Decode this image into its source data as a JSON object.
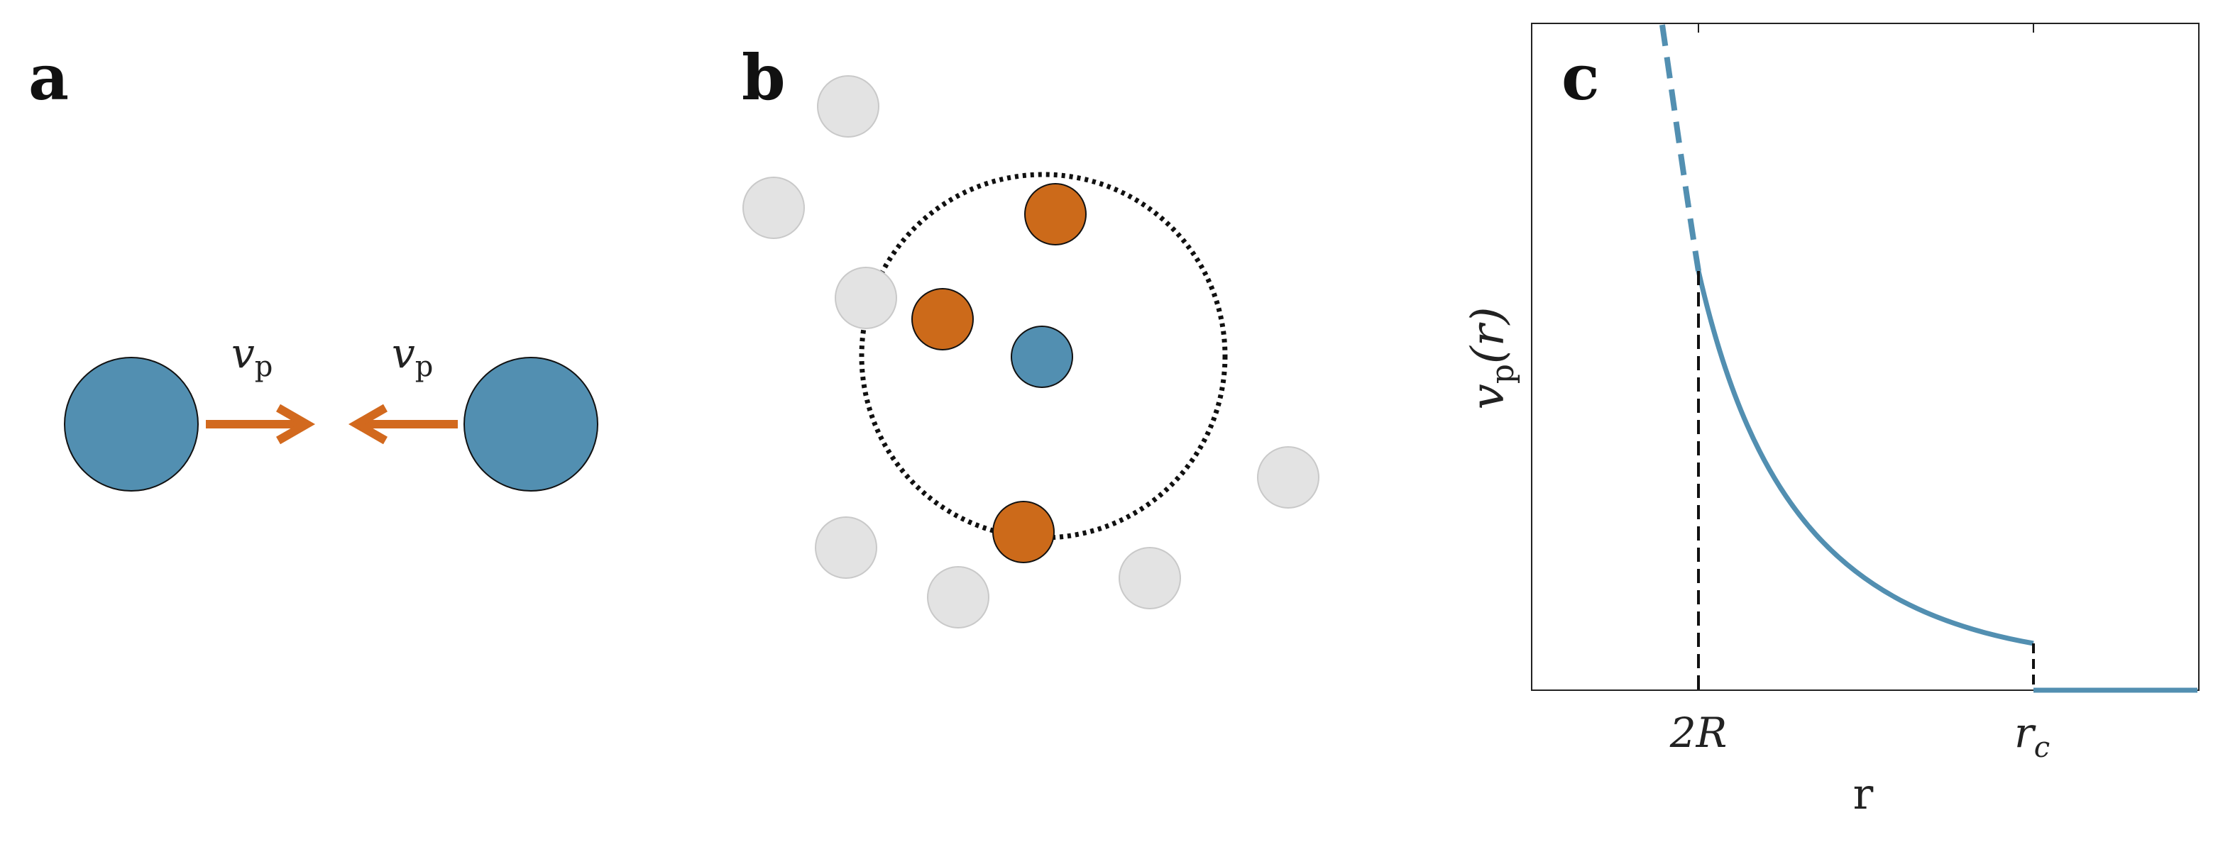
{
  "panels": {
    "a": {
      "label": "a",
      "arrow_label_left": {
        "base": "v",
        "sub": "p"
      },
      "arrow_label_right": {
        "base": "v",
        "sub": "p"
      }
    },
    "b": {
      "label": "b"
    },
    "c": {
      "label": "c",
      "ylabel": {
        "base": "v",
        "sub": "p",
        "arg": "(r)"
      },
      "xlabel": "r",
      "ticks": [
        {
          "id": "two-r",
          "text": "2R"
        },
        {
          "id": "r-c",
          "base": "r",
          "sub": "c"
        }
      ]
    }
  },
  "colors": {
    "particle_blue": "#528fb1",
    "particle_orange": "#cc6a1a",
    "neighbor_gray": "#e3e3e3",
    "curve": "#528fb1",
    "arrow": "#d2691e"
  }
}
